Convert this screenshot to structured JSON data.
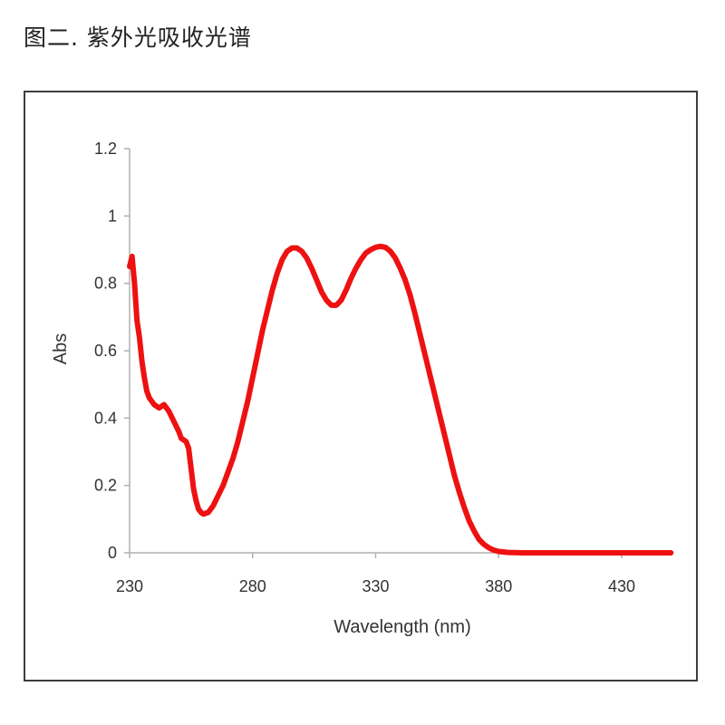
{
  "figure": {
    "caption": "图二. 紫外光吸收光谱"
  },
  "chart_data": {
    "type": "line",
    "title": "",
    "xlabel": "Wavelength (nm)",
    "ylabel": "Abs",
    "xlim": [
      230,
      450
    ],
    "ylim": [
      0,
      1.2
    ],
    "x_ticks": [
      230,
      280,
      330,
      380,
      430
    ],
    "y_ticks": [
      0,
      0.2,
      0.4,
      0.6,
      0.8,
      1,
      1.2
    ],
    "y_tick_labels": [
      "0",
      "0.2",
      "0.4",
      "0.6",
      "0.8",
      "1",
      "1.2"
    ],
    "grid": false,
    "legend": "none",
    "series": [
      {
        "color": "#ee1111",
        "points": [
          [
            230,
            0.85
          ],
          [
            231,
            0.88
          ],
          [
            232,
            0.8
          ],
          [
            233,
            0.69
          ],
          [
            234,
            0.64
          ],
          [
            235,
            0.57
          ],
          [
            236,
            0.52
          ],
          [
            237,
            0.48
          ],
          [
            238,
            0.46
          ],
          [
            240,
            0.44
          ],
          [
            242,
            0.43
          ],
          [
            244,
            0.44
          ],
          [
            246,
            0.42
          ],
          [
            248,
            0.39
          ],
          [
            250,
            0.36
          ],
          [
            251,
            0.34
          ],
          [
            253,
            0.33
          ],
          [
            254,
            0.31
          ],
          [
            255,
            0.25
          ],
          [
            256,
            0.19
          ],
          [
            257,
            0.155
          ],
          [
            258,
            0.13
          ],
          [
            259,
            0.12
          ],
          [
            260,
            0.115
          ],
          [
            262,
            0.12
          ],
          [
            264,
            0.14
          ],
          [
            266,
            0.17
          ],
          [
            268,
            0.2
          ],
          [
            270,
            0.24
          ],
          [
            272,
            0.28
          ],
          [
            274,
            0.33
          ],
          [
            276,
            0.39
          ],
          [
            278,
            0.45
          ],
          [
            280,
            0.52
          ],
          [
            282,
            0.59
          ],
          [
            284,
            0.66
          ],
          [
            286,
            0.72
          ],
          [
            288,
            0.78
          ],
          [
            290,
            0.83
          ],
          [
            292,
            0.87
          ],
          [
            294,
            0.895
          ],
          [
            296,
            0.905
          ],
          [
            298,
            0.905
          ],
          [
            300,
            0.895
          ],
          [
            302,
            0.875
          ],
          [
            304,
            0.845
          ],
          [
            306,
            0.81
          ],
          [
            308,
            0.775
          ],
          [
            310,
            0.75
          ],
          [
            312,
            0.735
          ],
          [
            314,
            0.735
          ],
          [
            316,
            0.75
          ],
          [
            318,
            0.78
          ],
          [
            320,
            0.815
          ],
          [
            322,
            0.845
          ],
          [
            324,
            0.87
          ],
          [
            326,
            0.89
          ],
          [
            328,
            0.9
          ],
          [
            330,
            0.907
          ],
          [
            332,
            0.91
          ],
          [
            334,
            0.907
          ],
          [
            336,
            0.895
          ],
          [
            338,
            0.875
          ],
          [
            340,
            0.845
          ],
          [
            342,
            0.81
          ],
          [
            344,
            0.765
          ],
          [
            346,
            0.71
          ],
          [
            348,
            0.65
          ],
          [
            350,
            0.59
          ],
          [
            352,
            0.53
          ],
          [
            354,
            0.47
          ],
          [
            356,
            0.41
          ],
          [
            358,
            0.35
          ],
          [
            360,
            0.29
          ],
          [
            362,
            0.23
          ],
          [
            364,
            0.18
          ],
          [
            366,
            0.135
          ],
          [
            368,
            0.095
          ],
          [
            370,
            0.065
          ],
          [
            372,
            0.04
          ],
          [
            374,
            0.025
          ],
          [
            376,
            0.015
          ],
          [
            378,
            0.008
          ],
          [
            380,
            0.004
          ],
          [
            384,
            0.001
          ],
          [
            390,
            0.0
          ],
          [
            400,
            0.0
          ],
          [
            420,
            0.0
          ],
          [
            440,
            0.0
          ],
          [
            450,
            0.0
          ]
        ]
      }
    ]
  }
}
